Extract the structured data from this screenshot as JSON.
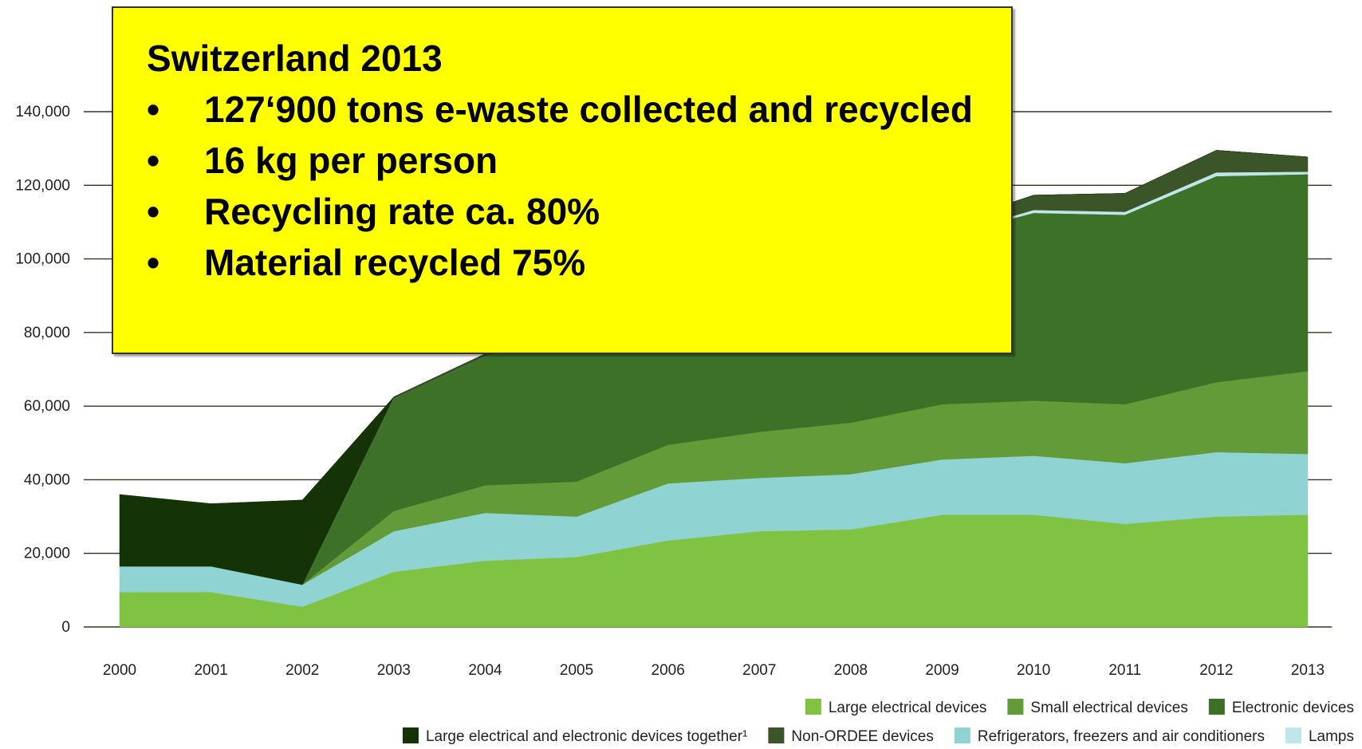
{
  "callout": {
    "title": "Switzerland 2013",
    "bullets": [
      "127‘900 tons e-waste collected and recycled",
      "16 kg per person",
      "Recycling rate ca. 80%",
      "Material recycled 75%"
    ],
    "background": "#ffff00"
  },
  "chart_data": {
    "type": "area",
    "stacked": true,
    "title": "",
    "xlabel": "",
    "ylabel": "",
    "ylim": [
      0,
      140000
    ],
    "yticks": [
      0,
      20000,
      40000,
      60000,
      80000,
      100000,
      120000,
      140000
    ],
    "ytick_labels": [
      "0",
      "20,000",
      "40,000",
      "60,000",
      "80,000",
      "100,000",
      "120,000",
      "140,000"
    ],
    "x": [
      "2000",
      "2001",
      "2002",
      "2003",
      "2004",
      "2005",
      "2006",
      "2007",
      "2008",
      "2009",
      "2010",
      "2011",
      "2012",
      "2013"
    ],
    "grid": "horizontal",
    "legend_position": "bottom-right",
    "series": [
      {
        "name": "Large electrical devices",
        "color": "#80c242",
        "values": [
          9500,
          9500,
          5500,
          15000,
          18000,
          19000,
          23500,
          26000,
          26500,
          30500,
          30500,
          28000,
          30000,
          30500
        ]
      },
      {
        "name": "Refrigerators, freezers and air conditioners",
        "color": "#8fd3d3",
        "values": [
          7000,
          7000,
          6000,
          11000,
          13000,
          11000,
          15500,
          14500,
          15000,
          15000,
          16000,
          16500,
          17500,
          16500
        ]
      },
      {
        "name": "Small electrical devices",
        "color": "#629b38",
        "values": [
          0,
          0,
          0,
          5500,
          7500,
          9500,
          10500,
          12500,
          14000,
          15000,
          15000,
          16000,
          19000,
          22500
        ]
      },
      {
        "name": "Electronic devices",
        "color": "#3e7128",
        "values": [
          0,
          0,
          0,
          30500,
          35000,
          41000,
          43000,
          44500,
          44500,
          45500,
          51000,
          51500,
          56000,
          53500
        ]
      },
      {
        "name": "Lamps",
        "color": "#bfe6ea",
        "values": [
          0,
          0,
          0,
          0,
          0,
          0,
          0,
          0,
          0,
          0,
          800,
          800,
          1000,
          700
        ]
      },
      {
        "name": "Non-ORDEE devices",
        "color": "#3b5428",
        "values": [
          0,
          0,
          0,
          500,
          700,
          1000,
          1500,
          2000,
          2500,
          3000,
          4000,
          5000,
          6000,
          4000
        ]
      },
      {
        "name": "Large electrical and electronic devices together¹",
        "color": "#143408",
        "values": [
          19500,
          17000,
          23000,
          0,
          0,
          0,
          0,
          0,
          0,
          0,
          0,
          0,
          0,
          0
        ]
      }
    ],
    "legend_rows": [
      [
        "Large electrical devices",
        "Small electrical devices",
        "Electronic devices"
      ],
      [
        "Large electrical and electronic devices together¹",
        "Non-ORDEE devices",
        "Refrigerators, freezers and air conditioners",
        "Lamps"
      ]
    ]
  }
}
